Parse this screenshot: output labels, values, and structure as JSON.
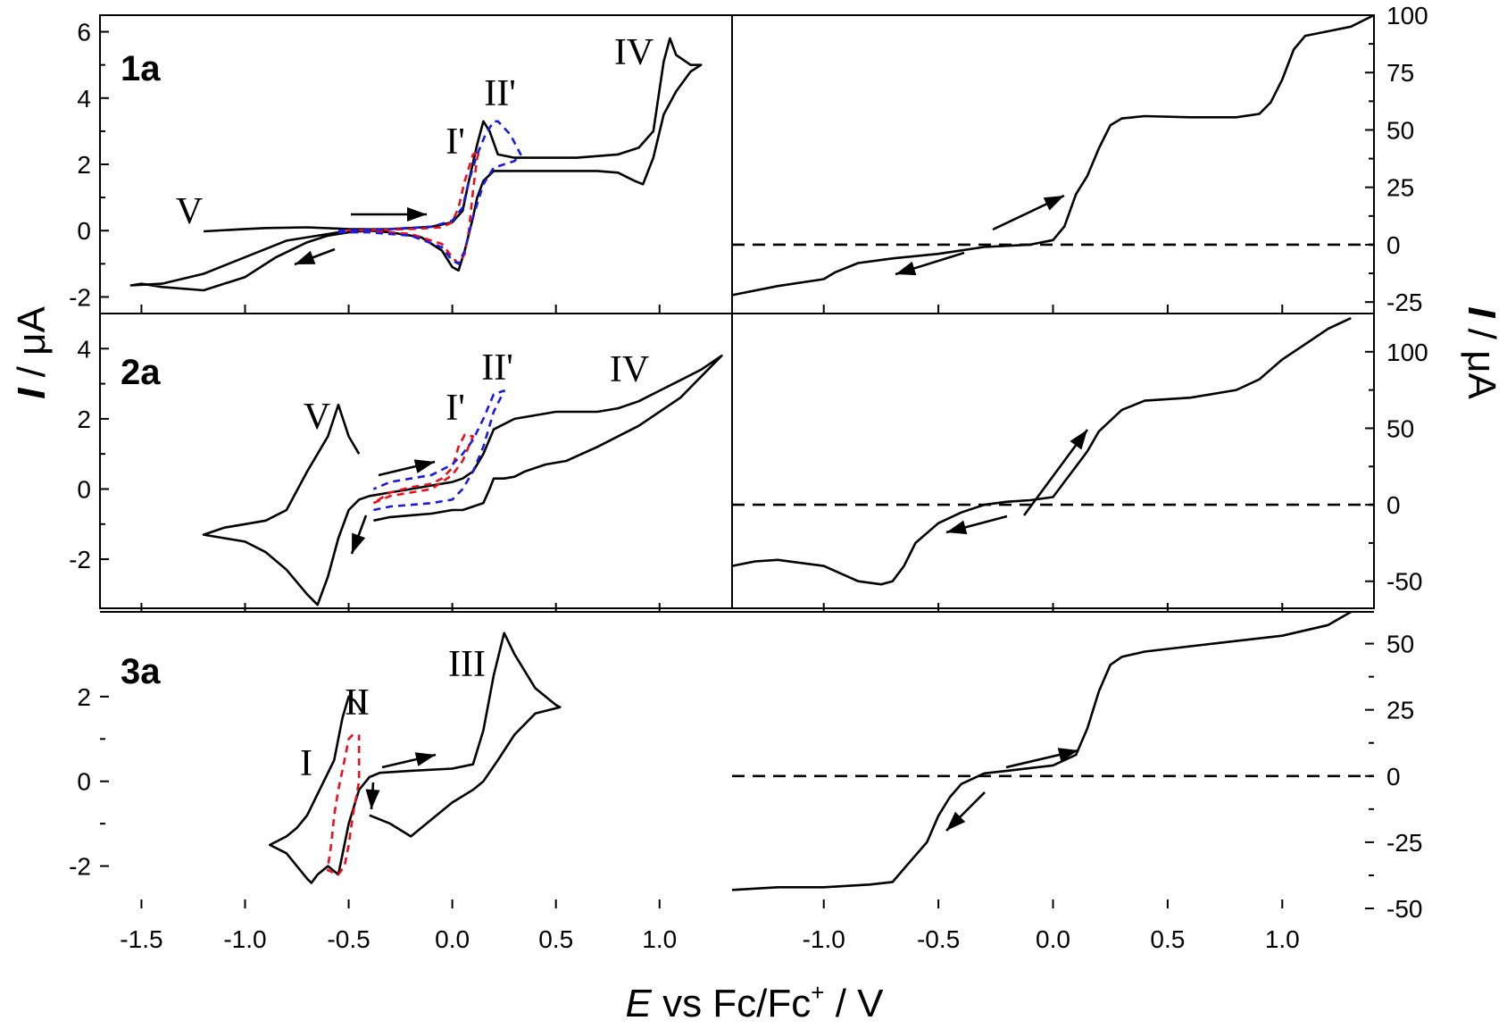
{
  "figure": {
    "xlabel_italic": "E",
    "xlabel_rest": " vs Fc/Fc",
    "xlabel_sup": "+",
    "xlabel_tail": " / V",
    "ylabel_left_italic": "I",
    "ylabel_left_rest": " / μA",
    "ylabel_right_italic": "I",
    "ylabel_right_rest": " / μA"
  },
  "chart_data": [
    {
      "type": "line",
      "panel": "1a",
      "side": "left",
      "title": "1a",
      "xlim": [
        -1.7,
        1.35
      ],
      "ylim": [
        -2.5,
        6.5
      ],
      "xticks": [
        "-1.5",
        "-1.0",
        "-0.5",
        "0.0",
        "0.5",
        "1.0"
      ],
      "xtick_values": [
        -1.5,
        -1.0,
        -0.5,
        0.0,
        0.5,
        1.0
      ],
      "yticks": [
        "-2",
        "0",
        "2",
        "4",
        "6"
      ],
      "ytick_values": [
        -2,
        0,
        2,
        4,
        6
      ],
      "series": [
        {
          "color": "#000000",
          "dash": "solid",
          "x": [
            -0.55,
            -0.8,
            -1.0,
            -1.2,
            -1.4,
            -1.55,
            -1.5,
            -1.4,
            -1.2,
            -1.0,
            -0.85,
            -0.7,
            -0.6,
            -0.5,
            -0.4,
            -0.3,
            -0.15,
            -0.05,
            0.0,
            0.03,
            0.06,
            0.1,
            0.12,
            0.15,
            0.2,
            0.3,
            0.5,
            0.7,
            0.8,
            0.88,
            0.92,
            0.97,
            1.02,
            1.08,
            1.15,
            1.2,
            1.15,
            1.08,
            1.05,
            1.02,
            0.97,
            0.9,
            0.8,
            0.6,
            0.4,
            0.3,
            0.22,
            0.18,
            0.15,
            0.12,
            0.08,
            0.05,
            0.0,
            -0.1,
            -0.2,
            -0.3,
            -0.4,
            -0.5,
            -0.7,
            -0.9,
            -1.0,
            -1.2
          ],
          "y": [
            -0.05,
            -0.3,
            -0.8,
            -1.3,
            -1.6,
            -1.65,
            -1.6,
            -1.7,
            -1.8,
            -1.4,
            -0.8,
            -0.35,
            -0.15,
            -0.05,
            0.0,
            -0.05,
            -0.2,
            -0.6,
            -1.1,
            -1.2,
            -0.6,
            0.4,
            1.0,
            1.5,
            1.8,
            1.8,
            1.8,
            1.8,
            1.75,
            1.5,
            1.4,
            2.2,
            3.5,
            4.2,
            4.8,
            5.0,
            5.0,
            5.3,
            5.8,
            5.1,
            3.0,
            2.5,
            2.3,
            2.2,
            2.2,
            2.2,
            2.3,
            3.0,
            3.3,
            2.6,
            1.5,
            0.6,
            0.25,
            0.12,
            0.08,
            0.05,
            0.04,
            0.05,
            0.1,
            0.08,
            0.05,
            -0.02
          ]
        },
        {
          "color": "#e8101d",
          "dash": "dashed",
          "x": [
            -0.55,
            -0.4,
            -0.2,
            -0.05,
            0.0,
            0.03,
            0.06,
            0.08,
            0.1,
            0.12,
            0.13,
            0.1,
            0.06,
            0.03,
            0.0,
            -0.05,
            -0.2,
            -0.4,
            -0.55
          ],
          "y": [
            0.0,
            0.0,
            -0.1,
            -0.4,
            -0.8,
            -1.0,
            -0.7,
            0.0,
            1.2,
            2.2,
            2.4,
            2.3,
            1.5,
            0.7,
            0.25,
            0.1,
            0.05,
            0.02,
            0.0
          ]
        },
        {
          "color": "#1a1ae0",
          "dash": "dashed",
          "x": [
            -0.55,
            -0.4,
            -0.2,
            -0.05,
            0.0,
            0.03,
            0.06,
            0.1,
            0.15,
            0.2,
            0.25,
            0.3,
            0.33,
            0.28,
            0.22,
            0.2,
            0.16,
            0.12,
            0.08,
            0.05,
            0.0,
            -0.1,
            -0.3,
            -0.55
          ],
          "y": [
            -0.05,
            -0.05,
            -0.15,
            -0.5,
            -0.9,
            -1.0,
            -0.6,
            0.4,
            1.4,
            1.9,
            2.0,
            2.1,
            2.3,
            2.9,
            3.3,
            3.3,
            2.9,
            2.3,
            1.5,
            0.7,
            0.3,
            0.12,
            0.05,
            0.0
          ]
        }
      ],
      "annotations": [
        "V",
        "I'",
        "II'",
        "IV"
      ]
    },
    {
      "type": "line",
      "panel": "1a",
      "side": "right",
      "xlim": [
        -1.4,
        1.4
      ],
      "ylim": [
        -30,
        100
      ],
      "xticks": [
        "-1.0",
        "-0.5",
        "0.0",
        "0.5",
        "1.0"
      ],
      "xtick_values": [
        -1.0,
        -0.5,
        0.0,
        0.5,
        1.0
      ],
      "yticks": [
        "-25",
        "0",
        "25",
        "50",
        "75",
        "100"
      ],
      "ytick_values": [
        -25,
        0,
        25,
        50,
        75,
        100
      ],
      "series": [
        {
          "color": "#000000",
          "dash": "solid",
          "x": [
            -1.4,
            -1.2,
            -1.0,
            -0.95,
            -0.85,
            -0.7,
            -0.5,
            -0.3,
            -0.1,
            0.0,
            0.05,
            0.1,
            0.15,
            0.2,
            0.25,
            0.3,
            0.4,
            0.6,
            0.8,
            0.9,
            0.95,
            1.0,
            1.05,
            1.1,
            1.2,
            1.3,
            1.4
          ],
          "y": [
            -22,
            -18,
            -15,
            -12,
            -8,
            -6,
            -4,
            -1,
            0,
            2,
            8,
            22,
            30,
            42,
            52,
            55,
            56,
            55.5,
            55.5,
            57,
            62,
            72,
            85,
            91,
            93,
            95,
            100
          ]
        },
        {
          "color": "#000000",
          "dash": "dashed",
          "x": [
            -1.4,
            1.4
          ],
          "y": [
            0,
            0
          ]
        }
      ]
    },
    {
      "type": "line",
      "panel": "2a",
      "side": "left",
      "title": "2a",
      "xlim": [
        -1.7,
        1.35
      ],
      "ylim": [
        -3.5,
        5.0
      ],
      "xticks": [
        "-1.5",
        "-1.0",
        "-0.5",
        "0.0",
        "0.5",
        "1.0"
      ],
      "xtick_values": [
        -1.5,
        -1.0,
        -0.5,
        0.0,
        0.5,
        1.0
      ],
      "yticks": [
        "-2",
        "0",
        "2",
        "4"
      ],
      "ytick_values": [
        -2,
        0,
        2,
        4
      ],
      "series": [
        {
          "color": "#000000",
          "dash": "solid",
          "x": [
            -0.45,
            -0.5,
            -0.55,
            -0.6,
            -0.7,
            -0.8,
            -0.9,
            -1.0,
            -1.1,
            -1.2,
            -1.1,
            -1.0,
            -0.9,
            -0.8,
            -0.7,
            -0.65,
            -0.6,
            -0.55,
            -0.5,
            -0.45,
            -0.4,
            -0.3,
            -0.2,
            -0.1,
            0.0,
            0.05,
            0.1,
            0.15,
            0.2,
            0.3,
            0.5,
            0.7,
            0.8,
            0.9,
            1.0,
            1.1,
            1.2,
            1.3,
            1.25,
            1.1,
            0.9,
            0.7,
            0.55,
            0.45,
            0.35,
            0.3,
            0.25,
            0.2,
            0.18,
            0.15,
            0.1,
            0.05,
            0.0,
            -0.1,
            -0.2,
            -0.3,
            -0.38
          ],
          "y": [
            1.0,
            1.5,
            2.4,
            1.5,
            0.5,
            -0.6,
            -0.9,
            -1.0,
            -1.1,
            -1.3,
            -1.4,
            -1.5,
            -1.8,
            -2.3,
            -3.0,
            -3.3,
            -2.5,
            -1.4,
            -0.6,
            -0.3,
            -0.2,
            -0.1,
            0.0,
            0.1,
            0.2,
            0.3,
            0.5,
            1.0,
            1.7,
            2.0,
            2.2,
            2.2,
            2.3,
            2.5,
            2.8,
            3.1,
            3.4,
            3.8,
            3.5,
            2.6,
            1.8,
            1.2,
            0.8,
            0.7,
            0.5,
            0.35,
            0.3,
            0.3,
            0.0,
            -0.4,
            -0.5,
            -0.6,
            -0.6,
            -0.7,
            -0.75,
            -0.8,
            -0.9
          ]
        },
        {
          "color": "#e8101d",
          "dash": "dashed",
          "x": [
            -0.38,
            -0.3,
            -0.2,
            -0.1,
            -0.05,
            0.0,
            0.05,
            0.1,
            0.06,
            0.03,
            0.0,
            -0.05,
            -0.1,
            -0.2,
            -0.3,
            -0.38
          ],
          "y": [
            -0.4,
            -0.2,
            -0.1,
            0.0,
            0.2,
            0.4,
            0.8,
            1.5,
            1.55,
            1.2,
            0.6,
            0.3,
            0.15,
            0.05,
            -0.1,
            -0.4
          ]
        },
        {
          "color": "#1a1ae0",
          "dash": "dashed",
          "x": [
            -0.38,
            -0.3,
            -0.2,
            -0.1,
            0.0,
            0.05,
            0.1,
            0.15,
            0.2,
            0.25,
            0.2,
            0.15,
            0.1,
            0.05,
            0.0,
            -0.1,
            -0.2,
            -0.3,
            -0.38
          ],
          "y": [
            -0.6,
            -0.5,
            -0.45,
            -0.4,
            -0.3,
            0.0,
            0.5,
            1.2,
            2.2,
            2.8,
            2.7,
            2.0,
            1.4,
            1.0,
            0.7,
            0.4,
            0.3,
            0.2,
            0.0
          ]
        }
      ],
      "annotations": [
        "V",
        "I'",
        "II'",
        "IV"
      ]
    },
    {
      "type": "line",
      "panel": "2a",
      "side": "right",
      "xlim": [
        -1.4,
        1.4
      ],
      "ylim": [
        -70,
        125
      ],
      "xticks": [
        "-1.0",
        "-0.5",
        "0.0",
        "0.5",
        "1.0"
      ],
      "xtick_values": [
        -1.0,
        -0.5,
        0.0,
        0.5,
        1.0
      ],
      "yticks": [
        "-50",
        "0",
        "50",
        "100"
      ],
      "ytick_values": [
        -50,
        0,
        50,
        100
      ],
      "series": [
        {
          "color": "#000000",
          "dash": "solid",
          "x": [
            -1.4,
            -1.3,
            -1.2,
            -1.0,
            -0.85,
            -0.75,
            -0.7,
            -0.65,
            -0.6,
            -0.5,
            -0.4,
            -0.3,
            -0.2,
            -0.1,
            0.0,
            0.05,
            0.1,
            0.15,
            0.2,
            0.25,
            0.3,
            0.4,
            0.6,
            0.8,
            0.9,
            1.0,
            1.1,
            1.2,
            1.3
          ],
          "y": [
            -40,
            -37,
            -36,
            -40,
            -50,
            -52,
            -50,
            -40,
            -25,
            -12,
            -5,
            0,
            2,
            3,
            5,
            15,
            25,
            35,
            48,
            55,
            62,
            68,
            70,
            75,
            82,
            95,
            105,
            115,
            122
          ]
        },
        {
          "color": "#000000",
          "dash": "dashed",
          "x": [
            -1.4,
            1.4
          ],
          "y": [
            0,
            0
          ]
        }
      ]
    },
    {
      "type": "line",
      "panel": "3a",
      "side": "left",
      "title": "3a",
      "xlim": [
        -1.7,
        1.35
      ],
      "ylim": [
        -3.0,
        4.0
      ],
      "xticks": [
        "-1.5",
        "-1.0",
        "-0.5",
        "0.0",
        "0.5",
        "1.0"
      ],
      "xtick_values": [
        -1.5,
        -1.0,
        -0.5,
        0.0,
        0.5,
        1.0
      ],
      "yticks": [
        "-2",
        "0",
        "2"
      ],
      "ytick_values": [
        -2,
        0,
        2
      ],
      "series": [
        {
          "color": "#000000",
          "dash": "solid",
          "x": [
            -0.43,
            -0.47,
            -0.5,
            -0.53,
            -0.57,
            -0.62,
            -0.65,
            -0.7,
            -0.75,
            -0.8,
            -0.88,
            -0.8,
            -0.75,
            -0.7,
            -0.68,
            -0.65,
            -0.6,
            -0.55,
            -0.5,
            -0.45,
            -0.4,
            -0.35,
            -0.2,
            0.0,
            0.1,
            0.15,
            0.2,
            0.25,
            0.3,
            0.4,
            0.5,
            0.52,
            0.4,
            0.3,
            0.22,
            0.15,
            0.1,
            0.0,
            -0.1,
            -0.2,
            -0.3,
            -0.4
          ],
          "y": [
            1.6,
            1.9,
            2.0,
            1.5,
            0.5,
            0.0,
            -0.3,
            -0.8,
            -1.1,
            -1.3,
            -1.5,
            -1.7,
            -2.0,
            -2.3,
            -2.4,
            -2.2,
            -2.0,
            -2.2,
            -1.0,
            -0.2,
            0.1,
            0.2,
            0.25,
            0.3,
            0.4,
            1.2,
            2.5,
            3.5,
            3.0,
            2.2,
            1.8,
            1.75,
            1.6,
            1.1,
            0.5,
            0.0,
            -0.2,
            -0.5,
            -0.9,
            -1.3,
            -1.0,
            -0.8
          ]
        },
        {
          "color": "#e8101d",
          "dash": "dashed",
          "x": [
            -0.48,
            -0.5,
            -0.52,
            -0.55,
            -0.57,
            -0.58,
            -0.59,
            -0.6,
            -0.6,
            -0.55,
            -0.52,
            -0.5,
            -0.48,
            -0.45,
            -0.45
          ],
          "y": [
            1.1,
            1.0,
            0.5,
            -0.2,
            -0.8,
            -1.3,
            -1.7,
            -2.0,
            -2.1,
            -2.2,
            -2.0,
            -1.5,
            -0.8,
            0.0,
            1.1
          ]
        }
      ],
      "annotations": [
        "I",
        "II",
        "III"
      ]
    },
    {
      "type": "line",
      "panel": "3a",
      "side": "right",
      "xlim": [
        -1.4,
        1.4
      ],
      "ylim": [
        -50,
        62
      ],
      "xticks": [
        "-1.0",
        "-0.5",
        "0.0",
        "0.5",
        "1.0"
      ],
      "xtick_values": [
        -1.0,
        -0.5,
        0.0,
        0.5,
        1.0
      ],
      "yticks": [
        "-50",
        "-25",
        "0",
        "25",
        "50"
      ],
      "ytick_values": [
        -50,
        -25,
        0,
        25,
        50
      ],
      "series": [
        {
          "color": "#000000",
          "dash": "solid",
          "x": [
            -1.4,
            -1.2,
            -1.0,
            -0.8,
            -0.7,
            -0.65,
            -0.6,
            -0.55,
            -0.5,
            -0.45,
            -0.4,
            -0.3,
            -0.2,
            0.0,
            0.1,
            0.15,
            0.2,
            0.25,
            0.3,
            0.4,
            0.6,
            0.8,
            1.0,
            1.2,
            1.3
          ],
          "y": [
            -43,
            -42,
            -42,
            -41,
            -40,
            -35,
            -30,
            -25,
            -15,
            -8,
            -3,
            1,
            2,
            4,
            8,
            18,
            32,
            42,
            45,
            47,
            49,
            51,
            53,
            57,
            62
          ]
        },
        {
          "color": "#000000",
          "dash": "dashed",
          "x": [
            -1.4,
            1.4
          ],
          "y": [
            0,
            0
          ]
        }
      ]
    }
  ]
}
